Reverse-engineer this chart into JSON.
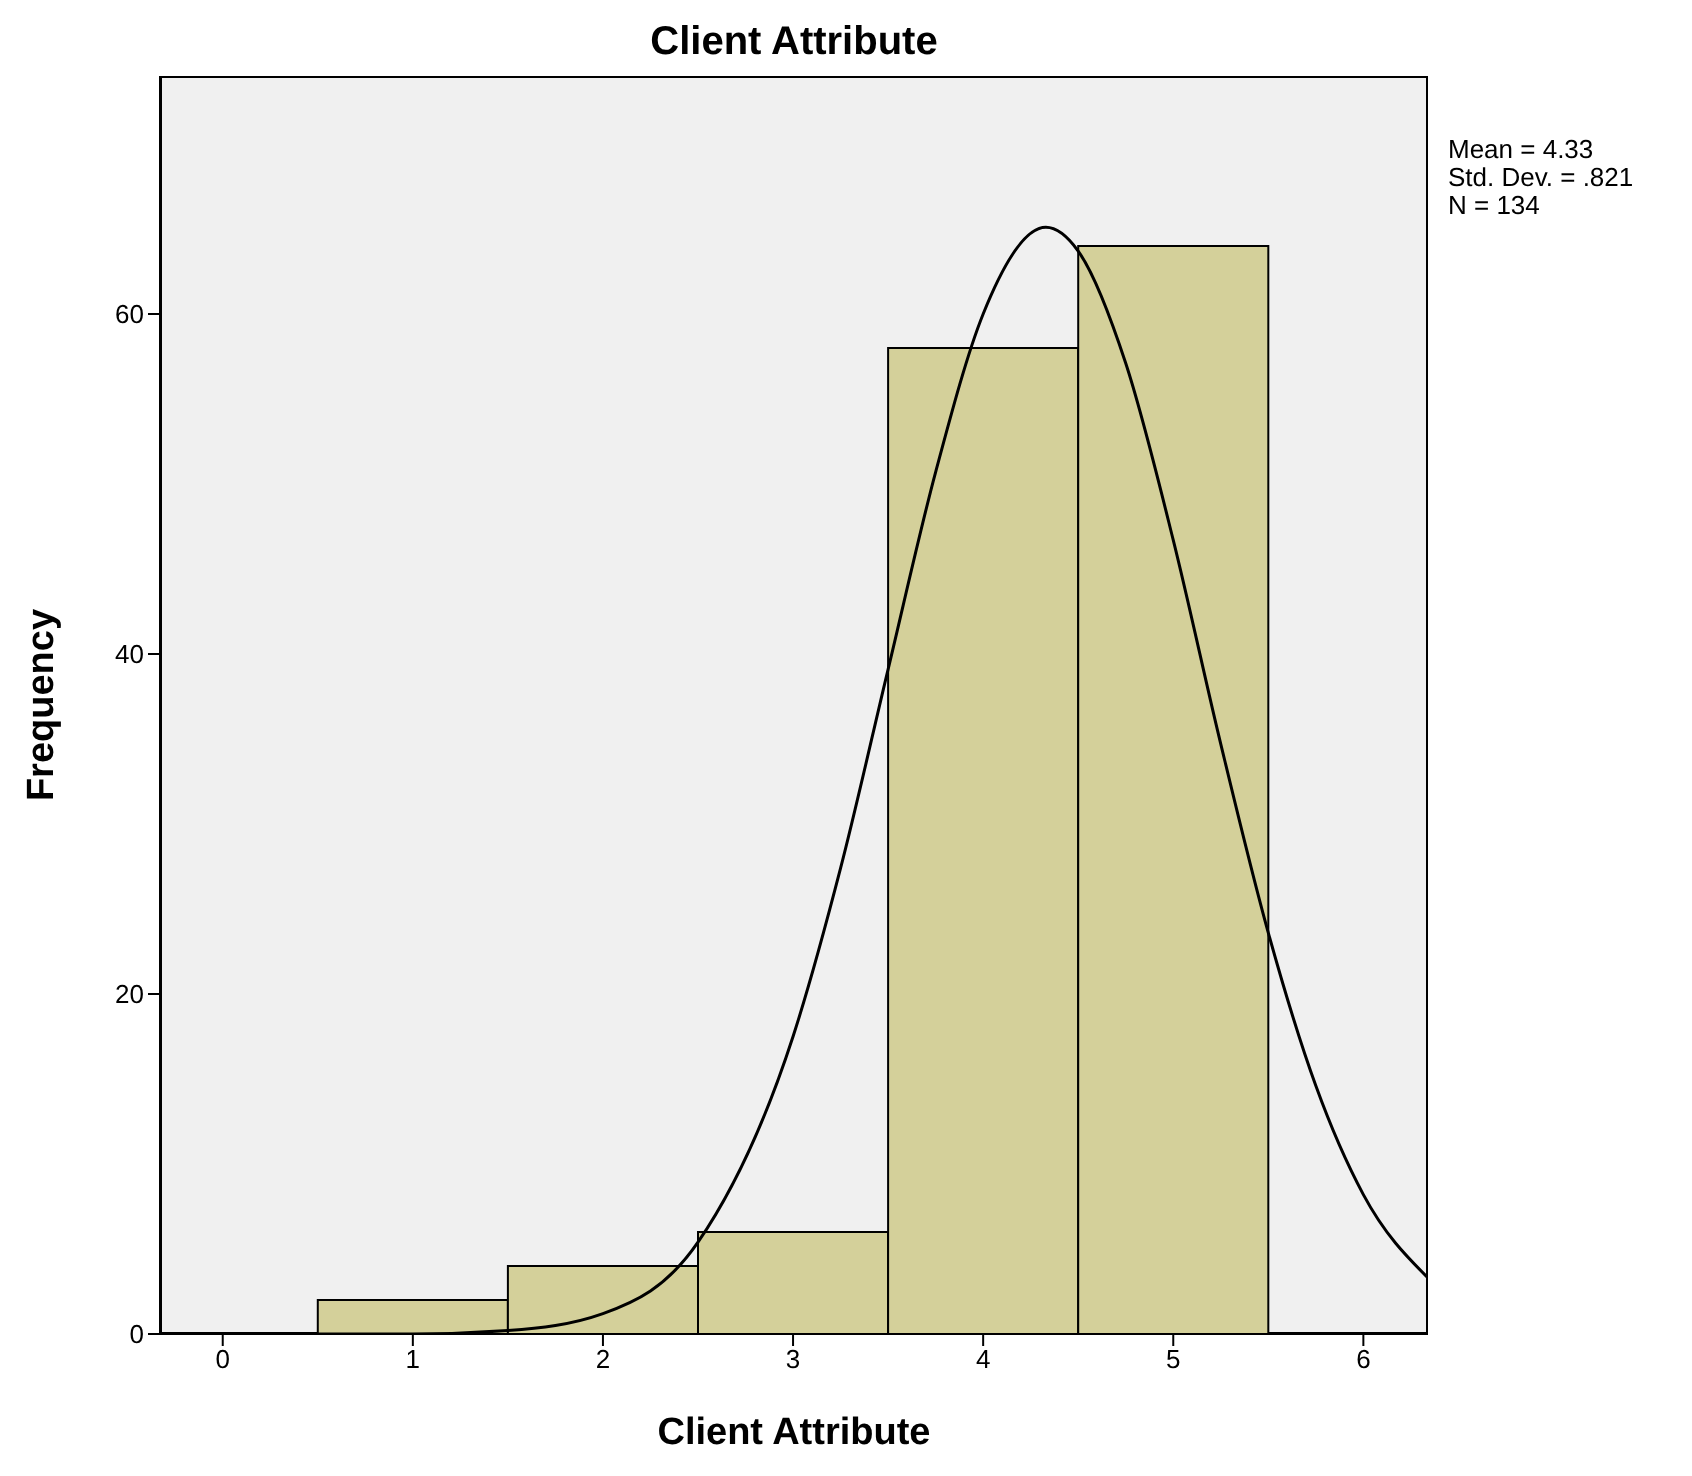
{
  "chart_data": {
    "type": "histogram",
    "title": "Client Attribute",
    "xlabel": "Client Attribute",
    "ylabel": "Frequency",
    "bins": [
      0.5,
      1.5,
      2.5,
      3.5,
      4.5,
      5.5
    ],
    "series": [
      {
        "type": "histogram",
        "color": "#d4d09a",
        "values": [
          2,
          4,
          6,
          58,
          64
        ]
      },
      {
        "type": "line",
        "color": "#000000",
        "x": [
          -0.33,
          0.5,
          1,
          1.5,
          2,
          2.5,
          3,
          3.25,
          3.5,
          3.75,
          4,
          4.33,
          4.5,
          4.75,
          5,
          5.25,
          5.5,
          5.75,
          6,
          6.34
        ],
        "values": [
          0,
          0,
          0,
          0.2,
          1.2,
          5.4,
          17.5,
          27.4,
          39.1,
          50.7,
          60,
          65.1,
          63.7,
          57.1,
          46.7,
          34.7,
          23.6,
          14.6,
          8.2,
          3.3
        ]
      }
    ],
    "xlim": [
      -0.33,
      6.34
    ],
    "xticks": [
      0,
      1,
      2,
      3,
      4,
      5,
      6
    ],
    "ylim": [
      0,
      74
    ],
    "yticks": [
      0,
      20,
      40,
      60
    ],
    "grid": false,
    "legend": false,
    "marker": "none",
    "line_style": "solid",
    "annotations": [
      "Mean = 4.33",
      "Std. Dev. = .821",
      "N = 134"
    ]
  }
}
